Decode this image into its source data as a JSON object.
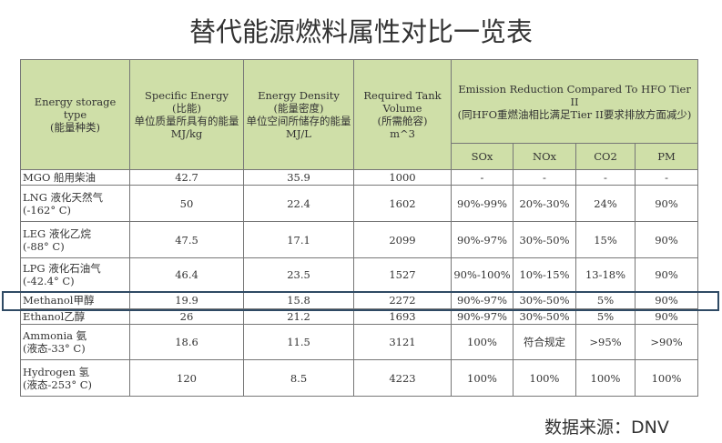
{
  "title": "替代能源燃料属性对比一览表",
  "headers": {
    "type": "Energy storage type\n(能量种类)",
    "specific": "Specific Energy\n(比能)\n单位质量所具有的能量\nMJ/kg",
    "density": "Energy Density\n(能量密度)\n单位空间所储存的能量\nMJ/L",
    "tank": "Required Tank Volume\n(所需舱容)\nm^3",
    "emission": "Emission Reduction Compared To HFO Tier II\n(同HFO重燃油相比满足Tier II要求排放方面减少)",
    "sox": "SOx",
    "nox": "NOx",
    "co2": "CO2",
    "pm": "PM"
  },
  "rows": [
    {
      "name": "MGO 船用柴油",
      "specific": "42.7",
      "density": "35.9",
      "tank": "1000",
      "sox": "-",
      "nox": "-",
      "co2": "-",
      "pm": "-"
    },
    {
      "name": "LNG 液化天然气\n(-162° C)",
      "specific": "50",
      "density": "22.4",
      "tank": "1602",
      "sox": "90%-99%",
      "nox": "20%-30%",
      "co2": "24%",
      "pm": "90%"
    },
    {
      "name": "LEG 液化乙烷\n(-88° C)",
      "specific": "47.5",
      "density": "17.1",
      "tank": "2099",
      "sox": "90%-97%",
      "nox": "30%-50%",
      "co2": "15%",
      "pm": "90%"
    },
    {
      "name": "LPG 液化石油气\n(-42.4° C)",
      "specific": "46.4",
      "density": "23.5",
      "tank": "1527",
      "sox": "90%-100%",
      "nox": "10%-15%",
      "co2": "13-18%",
      "pm": "90%"
    },
    {
      "name": "Methanol甲醇",
      "specific": "19.9",
      "density": "15.8",
      "tank": "2272",
      "sox": "90%-97%",
      "nox": "30%-50%",
      "co2": "5%",
      "pm": "90%"
    },
    {
      "name": "Ethanol乙醇",
      "specific": "26",
      "density": "21.2",
      "tank": "1693",
      "sox": "90%-97%",
      "nox": "30%-50%",
      "co2": "5%",
      "pm": "90%"
    },
    {
      "name": "Ammonia 氨\n(液态-33° C)",
      "specific": "18.6",
      "density": "11.5",
      "tank": "3121",
      "sox": "100%",
      "nox": "符合规定",
      "co2": ">95%",
      "pm": ">90%"
    },
    {
      "name": "Hydrogen 氢\n(液态-253° C)",
      "specific": "120",
      "density": "8.5",
      "tank": "4223",
      "sox": "100%",
      "nox": "100%",
      "co2": "100%",
      "pm": "100%"
    }
  ],
  "source": "数据来源：DNV"
}
